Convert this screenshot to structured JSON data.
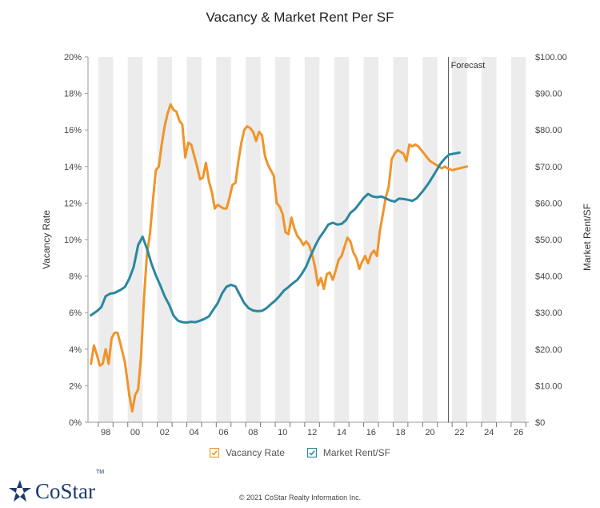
{
  "header": {
    "title": "Vacancy & Market Rent Per SF"
  },
  "footer": {
    "copyright": "© 2021 CoStar Realty Information Inc.",
    "logo_text": "CoStar",
    "logo_tm": "TM"
  },
  "colors": {
    "vacancy": "#f0942a",
    "rent": "#2a87a0",
    "band": "#ececec",
    "forecast_line": "#555555"
  },
  "chart_data": {
    "type": "line",
    "title": "Vacancy & Market Rent Per SF",
    "x_tick_labels": [
      "98",
      "00",
      "02",
      "04",
      "06",
      "08",
      "10",
      "12",
      "14",
      "16",
      "18",
      "20",
      "22",
      "24",
      "26"
    ],
    "x_tick_years": [
      1998,
      2000,
      2002,
      2004,
      2006,
      2008,
      2010,
      2012,
      2014,
      2016,
      2018,
      2020,
      2022,
      2024,
      2026
    ],
    "x_range": [
      1996.8,
      2026.7
    ],
    "forecast_label": "Forecast",
    "forecast_start": 2021.25,
    "left_axis": {
      "label": "Vacancy Rate",
      "ticks": [
        "0%",
        "2%",
        "4%",
        "6%",
        "8%",
        "10%",
        "12%",
        "14%",
        "16%",
        "18%",
        "20%"
      ],
      "range": [
        0,
        20
      ]
    },
    "right_axis": {
      "label": "Market Rent/SF",
      "ticks": [
        "$0",
        "$10.00",
        "$20.00",
        "$30.00",
        "$40.00",
        "$50.00",
        "$60.00",
        "$70.00",
        "$80.00",
        "$90.00",
        "$100.00"
      ],
      "range": [
        0,
        100
      ]
    },
    "legend": [
      "Vacancy Rate",
      "Market Rent/SF"
    ],
    "series": [
      {
        "name": "Vacancy Rate",
        "axis": "left",
        "points": [
          [
            1997.0,
            3.2
          ],
          [
            1997.2,
            4.2
          ],
          [
            1997.4,
            3.7
          ],
          [
            1997.6,
            3.1
          ],
          [
            1997.8,
            3.2
          ],
          [
            1998.0,
            4.0
          ],
          [
            1998.2,
            3.2
          ],
          [
            1998.4,
            4.6
          ],
          [
            1998.6,
            4.9
          ],
          [
            1998.8,
            4.9
          ],
          [
            1999.0,
            4.3
          ],
          [
            1999.3,
            3.3
          ],
          [
            1999.6,
            1.5
          ],
          [
            1999.8,
            0.6
          ],
          [
            2000.0,
            1.5
          ],
          [
            2000.2,
            1.8
          ],
          [
            2000.4,
            3.6
          ],
          [
            2000.6,
            6.8
          ],
          [
            2000.8,
            9.2
          ],
          [
            2001.0,
            10.3
          ],
          [
            2001.2,
            12.1
          ],
          [
            2001.4,
            13.8
          ],
          [
            2001.6,
            14.0
          ],
          [
            2001.8,
            15.2
          ],
          [
            2002.0,
            16.2
          ],
          [
            2002.2,
            16.9
          ],
          [
            2002.4,
            17.4
          ],
          [
            2002.6,
            17.1
          ],
          [
            2002.8,
            17.0
          ],
          [
            2003.0,
            16.5
          ],
          [
            2003.2,
            16.3
          ],
          [
            2003.4,
            14.5
          ],
          [
            2003.6,
            15.3
          ],
          [
            2003.8,
            15.2
          ],
          [
            2004.0,
            14.6
          ],
          [
            2004.2,
            14.0
          ],
          [
            2004.4,
            13.3
          ],
          [
            2004.6,
            13.4
          ],
          [
            2004.8,
            14.2
          ],
          [
            2005.0,
            13.2
          ],
          [
            2005.2,
            12.6
          ],
          [
            2005.4,
            11.7
          ],
          [
            2005.6,
            11.9
          ],
          [
            2005.8,
            11.8
          ],
          [
            2006.0,
            11.7
          ],
          [
            2006.2,
            11.7
          ],
          [
            2006.4,
            12.3
          ],
          [
            2006.6,
            13.0
          ],
          [
            2006.8,
            13.1
          ],
          [
            2007.0,
            14.3
          ],
          [
            2007.2,
            15.3
          ],
          [
            2007.4,
            16.0
          ],
          [
            2007.6,
            16.2
          ],
          [
            2007.8,
            16.1
          ],
          [
            2008.0,
            15.9
          ],
          [
            2008.2,
            15.4
          ],
          [
            2008.4,
            15.9
          ],
          [
            2008.6,
            15.7
          ],
          [
            2008.8,
            14.6
          ],
          [
            2009.0,
            14.1
          ],
          [
            2009.2,
            13.8
          ],
          [
            2009.4,
            13.5
          ],
          [
            2009.6,
            12.0
          ],
          [
            2009.8,
            11.8
          ],
          [
            2010.0,
            11.4
          ],
          [
            2010.2,
            10.4
          ],
          [
            2010.4,
            10.3
          ],
          [
            2010.6,
            11.2
          ],
          [
            2010.8,
            10.6
          ],
          [
            2011.0,
            10.2
          ],
          [
            2011.2,
            10.0
          ],
          [
            2011.4,
            9.7
          ],
          [
            2011.6,
            9.9
          ],
          [
            2011.8,
            9.7
          ],
          [
            2012.0,
            9.2
          ],
          [
            2012.2,
            8.5
          ],
          [
            2012.4,
            7.5
          ],
          [
            2012.6,
            7.9
          ],
          [
            2012.8,
            7.3
          ],
          [
            2013.0,
            8.1
          ],
          [
            2013.2,
            8.2
          ],
          [
            2013.4,
            7.8
          ],
          [
            2013.6,
            8.3
          ],
          [
            2013.8,
            8.9
          ],
          [
            2014.0,
            9.1
          ],
          [
            2014.2,
            9.6
          ],
          [
            2014.4,
            10.1
          ],
          [
            2014.6,
            9.9
          ],
          [
            2014.8,
            9.3
          ],
          [
            2015.0,
            9.0
          ],
          [
            2015.2,
            8.4
          ],
          [
            2015.4,
            8.8
          ],
          [
            2015.6,
            9.1
          ],
          [
            2015.8,
            8.7
          ],
          [
            2016.0,
            9.2
          ],
          [
            2016.2,
            9.4
          ],
          [
            2016.4,
            9.1
          ],
          [
            2016.6,
            10.5
          ],
          [
            2016.8,
            11.4
          ],
          [
            2017.0,
            12.3
          ],
          [
            2017.2,
            12.9
          ],
          [
            2017.4,
            14.4
          ],
          [
            2017.6,
            14.7
          ],
          [
            2017.8,
            14.9
          ],
          [
            2018.0,
            14.8
          ],
          [
            2018.2,
            14.7
          ],
          [
            2018.4,
            14.3
          ],
          [
            2018.6,
            15.2
          ],
          [
            2018.8,
            15.1
          ],
          [
            2019.0,
            15.2
          ],
          [
            2019.2,
            15.1
          ],
          [
            2019.4,
            14.9
          ],
          [
            2019.6,
            14.7
          ],
          [
            2019.8,
            14.5
          ],
          [
            2020.0,
            14.3
          ],
          [
            2020.2,
            14.2
          ],
          [
            2020.4,
            14.1
          ],
          [
            2020.6,
            14.0
          ],
          [
            2020.8,
            13.9
          ],
          [
            2021.0,
            14.0
          ],
          [
            2021.2,
            13.9
          ],
          [
            2021.5,
            13.8
          ],
          [
            2022.0,
            13.9
          ],
          [
            2022.5,
            14.0
          ]
        ]
      },
      {
        "name": "Market Rent/SF",
        "axis": "right",
        "points": [
          [
            1997.0,
            29.3
          ],
          [
            1997.4,
            30.4
          ],
          [
            1997.7,
            31.5
          ],
          [
            1998.0,
            34.5
          ],
          [
            1998.3,
            35.2
          ],
          [
            1998.6,
            35.4
          ],
          [
            1999.0,
            36.2
          ],
          [
            1999.3,
            37.0
          ],
          [
            1999.6,
            39.3
          ],
          [
            1999.9,
            42.5
          ],
          [
            2000.2,
            48.5
          ],
          [
            2000.5,
            50.8
          ],
          [
            2000.8,
            47.5
          ],
          [
            2001.1,
            43.5
          ],
          [
            2001.4,
            40.2
          ],
          [
            2001.7,
            37.5
          ],
          [
            2002.0,
            34.5
          ],
          [
            2002.3,
            32.2
          ],
          [
            2002.6,
            29.2
          ],
          [
            2002.9,
            27.8
          ],
          [
            2003.2,
            27.4
          ],
          [
            2003.5,
            27.3
          ],
          [
            2003.8,
            27.5
          ],
          [
            2004.1,
            27.4
          ],
          [
            2004.4,
            27.8
          ],
          [
            2004.7,
            28.3
          ],
          [
            2005.0,
            29.0
          ],
          [
            2005.3,
            30.8
          ],
          [
            2005.6,
            32.6
          ],
          [
            2005.9,
            35.3
          ],
          [
            2006.2,
            37.1
          ],
          [
            2006.5,
            37.6
          ],
          [
            2006.8,
            37.2
          ],
          [
            2007.1,
            34.9
          ],
          [
            2007.4,
            32.6
          ],
          [
            2007.7,
            31.2
          ],
          [
            2008.0,
            30.6
          ],
          [
            2008.3,
            30.4
          ],
          [
            2008.6,
            30.5
          ],
          [
            2008.9,
            31.2
          ],
          [
            2009.2,
            32.3
          ],
          [
            2009.5,
            33.3
          ],
          [
            2009.8,
            34.6
          ],
          [
            2010.1,
            36.1
          ],
          [
            2010.4,
            37.0
          ],
          [
            2010.7,
            38.1
          ],
          [
            2011.0,
            39.0
          ],
          [
            2011.3,
            40.6
          ],
          [
            2011.6,
            42.6
          ],
          [
            2011.9,
            45.6
          ],
          [
            2012.2,
            48.2
          ],
          [
            2012.5,
            50.5
          ],
          [
            2012.8,
            52.2
          ],
          [
            2013.1,
            54.1
          ],
          [
            2013.4,
            54.6
          ],
          [
            2013.7,
            54.1
          ],
          [
            2014.0,
            54.3
          ],
          [
            2014.3,
            55.3
          ],
          [
            2014.6,
            57.3
          ],
          [
            2014.9,
            58.3
          ],
          [
            2015.2,
            59.8
          ],
          [
            2015.5,
            61.4
          ],
          [
            2015.8,
            62.5
          ],
          [
            2016.1,
            61.8
          ],
          [
            2016.4,
            61.6
          ],
          [
            2016.7,
            61.8
          ],
          [
            2017.0,
            61.3
          ],
          [
            2017.3,
            60.7
          ],
          [
            2017.6,
            60.4
          ],
          [
            2017.9,
            61.2
          ],
          [
            2018.2,
            61.1
          ],
          [
            2018.5,
            60.9
          ],
          [
            2018.8,
            60.6
          ],
          [
            2019.1,
            61.3
          ],
          [
            2019.5,
            63.2
          ],
          [
            2019.9,
            65.4
          ],
          [
            2020.3,
            68.0
          ],
          [
            2020.7,
            70.7
          ],
          [
            2021.0,
            72.2
          ],
          [
            2021.3,
            73.3
          ],
          [
            2022.0,
            73.8
          ]
        ]
      }
    ]
  }
}
